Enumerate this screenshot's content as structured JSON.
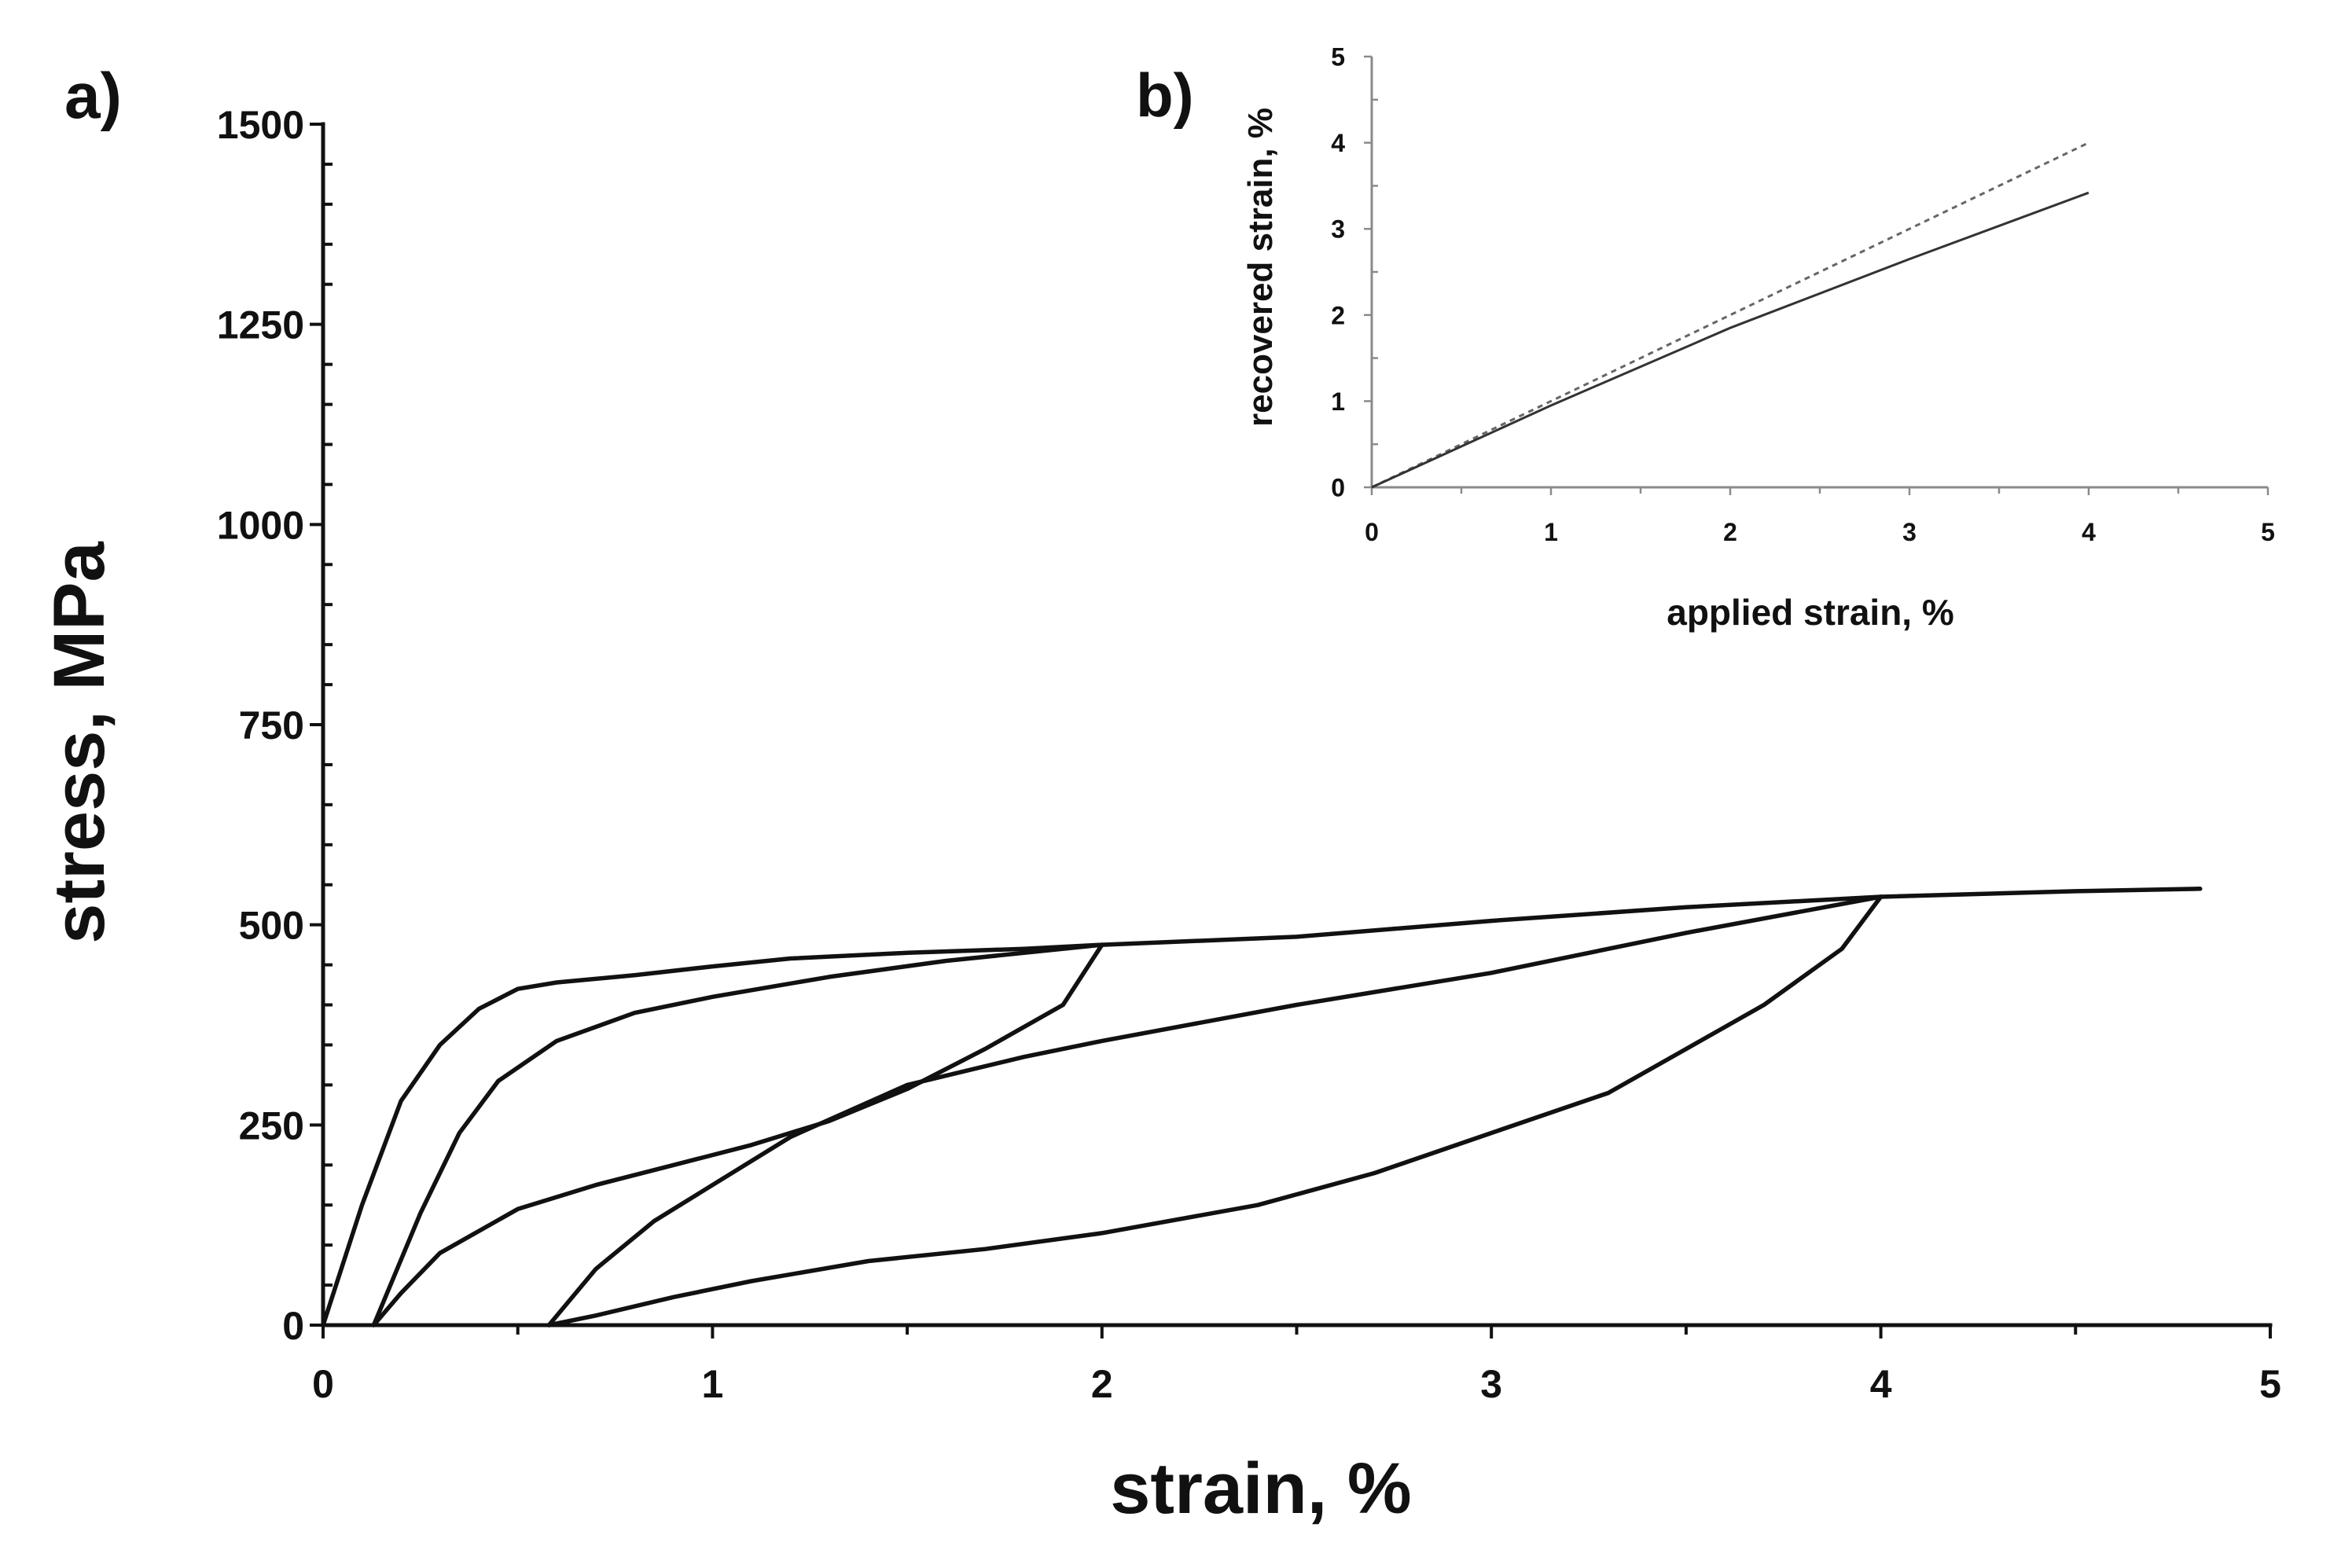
{
  "chart_data": [
    {
      "panel_label": "a)",
      "type": "line",
      "xlabel": "strain, %",
      "ylabel": "stress, MPa",
      "xlim": [
        0,
        5
      ],
      "ylim": [
        0,
        1500
      ],
      "xticks": [
        "0",
        "1",
        "2",
        "3",
        "4",
        "5"
      ],
      "yticks": [
        "0",
        "250",
        "500",
        "750",
        "1000",
        "1250",
        "1500"
      ],
      "grid": false,
      "series": [
        {
          "x": [
            0.0,
            0.1,
            0.2,
            0.3,
            0.4,
            0.5,
            0.6,
            0.8,
            1.0,
            1.2,
            1.5,
            1.8,
            2.0,
            2.5,
            3.0,
            3.5,
            4.0,
            4.5,
            4.82
          ],
          "y": [
            0,
            150,
            280,
            350,
            395,
            420,
            428,
            437,
            448,
            458,
            465,
            470,
            475,
            485,
            505,
            522,
            535,
            542,
            545
          ]
        },
        {
          "x": [
            2.0,
            1.9,
            1.7,
            1.5,
            1.3,
            1.1,
            0.9,
            0.7,
            0.5,
            0.3,
            0.2,
            0.13
          ],
          "y": [
            475,
            400,
            345,
            295,
            255,
            225,
            200,
            175,
            145,
            90,
            40,
            0
          ]
        },
        {
          "x": [
            0.13,
            0.25,
            0.35,
            0.45,
            0.6,
            0.8,
            1.0,
            1.3,
            1.6,
            2.0
          ],
          "y": [
            0,
            140,
            240,
            305,
            355,
            390,
            410,
            435,
            455,
            475
          ]
        },
        {
          "x": [
            4.0,
            3.9,
            3.7,
            3.5,
            3.3,
            3.0,
            2.7,
            2.4,
            2.0,
            1.7,
            1.4,
            1.1,
            0.9,
            0.7,
            0.58
          ],
          "y": [
            535,
            470,
            400,
            345,
            290,
            240,
            190,
            150,
            115,
            95,
            80,
            55,
            35,
            12,
            0
          ]
        },
        {
          "x": [
            0.58,
            0.7,
            0.85,
            1.0,
            1.2,
            1.5,
            1.8,
            2.0,
            2.5,
            3.0,
            3.5,
            4.0
          ],
          "y": [
            0,
            70,
            130,
            175,
            235,
            300,
            335,
            355,
            400,
            440,
            490,
            535
          ]
        }
      ]
    },
    {
      "panel_label": "b)",
      "type": "line",
      "xlabel": "applied strain, %",
      "ylabel": "recovered strain, %",
      "xlim": [
        0,
        5
      ],
      "ylim": [
        0,
        5
      ],
      "xticks": [
        "0",
        "1",
        "2",
        "3",
        "4",
        "5"
      ],
      "yticks": [
        "0",
        "1",
        "2",
        "3",
        "4",
        "5"
      ],
      "grid": false,
      "series": [
        {
          "x": [
            0,
            4
          ],
          "y": [
            0,
            4
          ],
          "style": "dotted",
          "color": "#666666"
        },
        {
          "x": [
            0,
            1,
            2,
            3,
            4
          ],
          "y": [
            0,
            0.95,
            1.85,
            2.65,
            3.42
          ],
          "style": "solid",
          "color": "#333333"
        }
      ]
    }
  ]
}
